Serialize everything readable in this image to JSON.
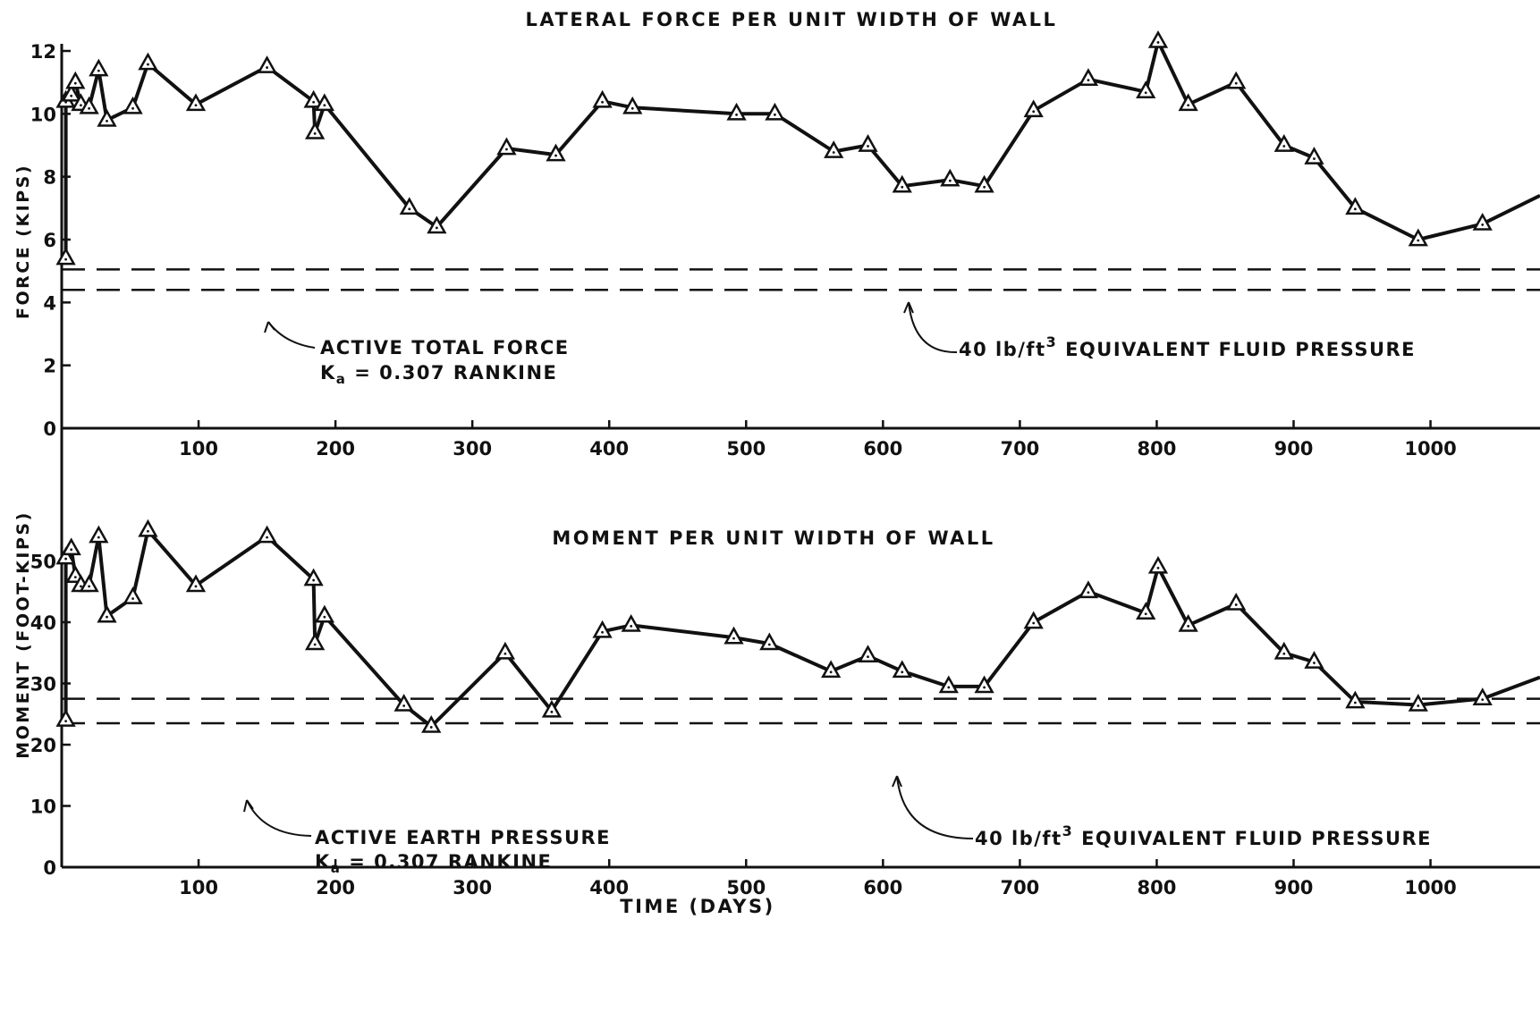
{
  "chart_data": [
    {
      "type": "line",
      "title": "LATERAL FORCE PER UNIT WIDTH OF WALL",
      "xlabel": "",
      "ylabel": "FORCE (KIPS)",
      "xlim": [
        0,
        1080
      ],
      "ylim": [
        0,
        12
      ],
      "xticks": [
        "100",
        "200",
        "300",
        "400",
        "500",
        "600",
        "700",
        "800",
        "900",
        "1000"
      ],
      "yticks": [
        "0",
        "2",
        "4",
        "6",
        "8",
        "10",
        "12"
      ],
      "grid": false,
      "marker": "triangle",
      "series": [
        {
          "x": [
            3,
            3,
            7,
            10,
            14,
            20,
            27,
            33,
            52,
            63,
            98,
            150,
            184,
            185,
            192,
            254,
            274,
            325,
            361,
            395,
            417,
            493,
            521,
            564,
            589,
            614,
            649,
            674,
            710,
            750,
            792,
            801,
            823,
            858,
            893,
            915,
            945,
            991,
            1038,
            1080
          ],
          "y": [
            5.4,
            10.4,
            10.6,
            11.0,
            10.3,
            10.2,
            11.4,
            9.8,
            10.2,
            11.6,
            10.3,
            11.5,
            10.4,
            9.4,
            10.3,
            7.0,
            6.4,
            8.9,
            8.7,
            10.4,
            10.2,
            10.0,
            10.0,
            8.8,
            9.0,
            7.7,
            7.9,
            7.7,
            10.1,
            11.1,
            10.7,
            12.3,
            10.3,
            11.0,
            9.0,
            8.6,
            7.0,
            6.0,
            6.5,
            7.4
          ]
        }
      ],
      "reference_lines": [
        {
          "y": 5.05
        },
        {
          "y": 4.4
        }
      ],
      "annotations": [
        {
          "lines": [
            "ACTIVE TOTAL FORCE",
            "K",
            "a",
            " = 0.307 RANKINE"
          ]
        },
        {
          "lines": [
            "40 lb/ft",
            "3",
            " EQUIVALENT FLUID PRESSURE"
          ]
        }
      ]
    },
    {
      "type": "line",
      "title": "MOMENT PER UNIT WIDTH OF WALL",
      "xlabel": "TIME (DAYS)",
      "ylabel": "MOMENT (FOOT-KIPS)",
      "xlim": [
        0,
        1080
      ],
      "ylim": [
        0,
        60
      ],
      "xticks": [
        "100",
        "200",
        "300",
        "400",
        "500",
        "600",
        "700",
        "800",
        "900",
        "1000"
      ],
      "yticks": [
        "0",
        "10",
        "20",
        "30",
        "40",
        "50"
      ],
      "grid": false,
      "marker": "triangle",
      "series": [
        {
          "x": [
            3,
            3,
            7,
            10,
            14,
            20,
            27,
            33,
            52,
            63,
            98,
            150,
            184,
            185,
            192,
            250,
            270,
            324,
            358,
            395,
            416,
            491,
            517,
            562,
            589,
            614,
            648,
            674,
            710,
            750,
            792,
            801,
            823,
            858,
            893,
            915,
            945,
            991,
            1038,
            1080
          ],
          "y": [
            24.0,
            50.5,
            52.0,
            47.5,
            46.0,
            46.0,
            54.0,
            41.0,
            44.0,
            55.0,
            46.0,
            54.0,
            47.0,
            36.5,
            41.0,
            26.5,
            23.0,
            35.0,
            25.5,
            38.5,
            39.5,
            37.5,
            36.5,
            32.0,
            34.5,
            32.0,
            29.5,
            29.5,
            40.0,
            45.0,
            41.5,
            49.0,
            39.5,
            43.0,
            35.0,
            33.5,
            27.0,
            26.5,
            27.5,
            31.0
          ]
        }
      ],
      "reference_lines": [
        {
          "y": 27.5
        },
        {
          "y": 23.5
        }
      ],
      "annotations": [
        {
          "lines": [
            "ACTIVE EARTH PRESSURE",
            "K",
            "a",
            " = 0.307 RANKINE"
          ]
        },
        {
          "lines": [
            "40 lb/ft",
            "3",
            " EQUIVALENT FLUID PRESSURE"
          ]
        }
      ]
    }
  ]
}
